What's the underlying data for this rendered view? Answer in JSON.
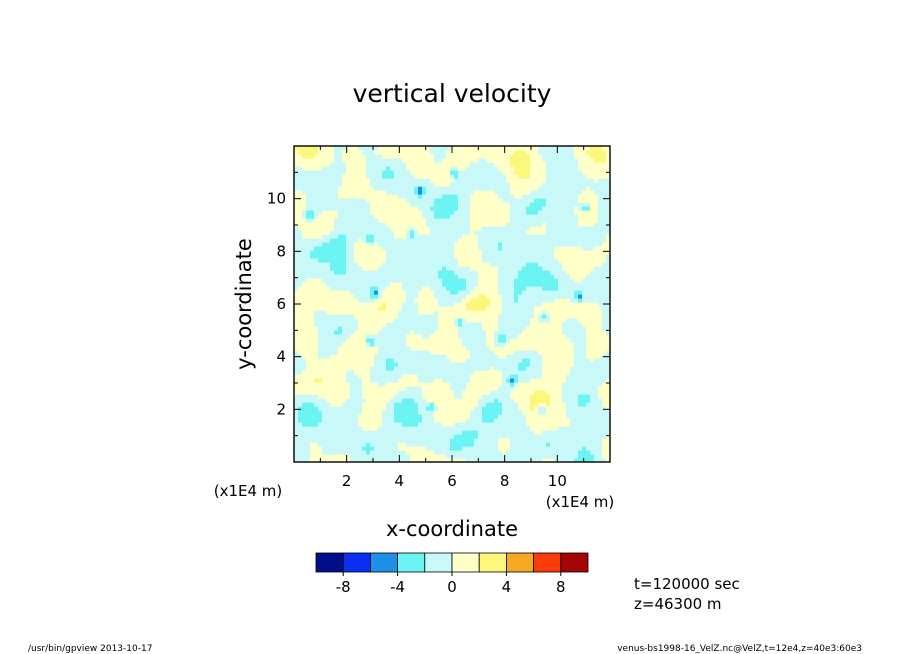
{
  "chart_data": {
    "type": "heatmap",
    "title": "vertical velocity",
    "xlabel": "x-coordinate",
    "ylabel": "y-coordinate",
    "x_unit": "(x1E4 m)",
    "y_unit": "(x1E4 m)",
    "xlim": [
      0,
      12
    ],
    "ylim": [
      0,
      12
    ],
    "x_ticks": [
      "2",
      "4",
      "6",
      "8",
      "10"
    ],
    "y_ticks": [
      "2",
      "4",
      "6",
      "8",
      "10"
    ],
    "x_tick_values": [
      2,
      4,
      6,
      8,
      10
    ],
    "y_tick_values": [
      2,
      4,
      6,
      8,
      10
    ],
    "colorbar": {
      "boundaries": [
        -10,
        -8,
        -6,
        -4,
        -2,
        0,
        2,
        4,
        6,
        8,
        10
      ],
      "colors": [
        "#000e8a",
        "#0a2ef2",
        "#1e90e6",
        "#6cf4f4",
        "#c8f8f8",
        "#ffffc8",
        "#fbf77a",
        "#f5aa22",
        "#fc3c0c",
        "#a40404"
      ],
      "tick_labels": [
        "-8",
        "-4",
        "0",
        "4",
        "8"
      ],
      "tick_values": [
        -8,
        -4,
        0,
        4,
        8
      ]
    },
    "field_summary": "Mostly values between -2 and 2; scattered small cells reaching -4 to -6."
  },
  "annotations": {
    "time": "t=120000 sec",
    "height": "z=46300 m",
    "footer_left": "/usr/bin/gpview   2013-10-17",
    "footer_right": "venus-bs1998-16_VelZ.nc@VelZ,t=12e4,z=40e3:60e3"
  }
}
